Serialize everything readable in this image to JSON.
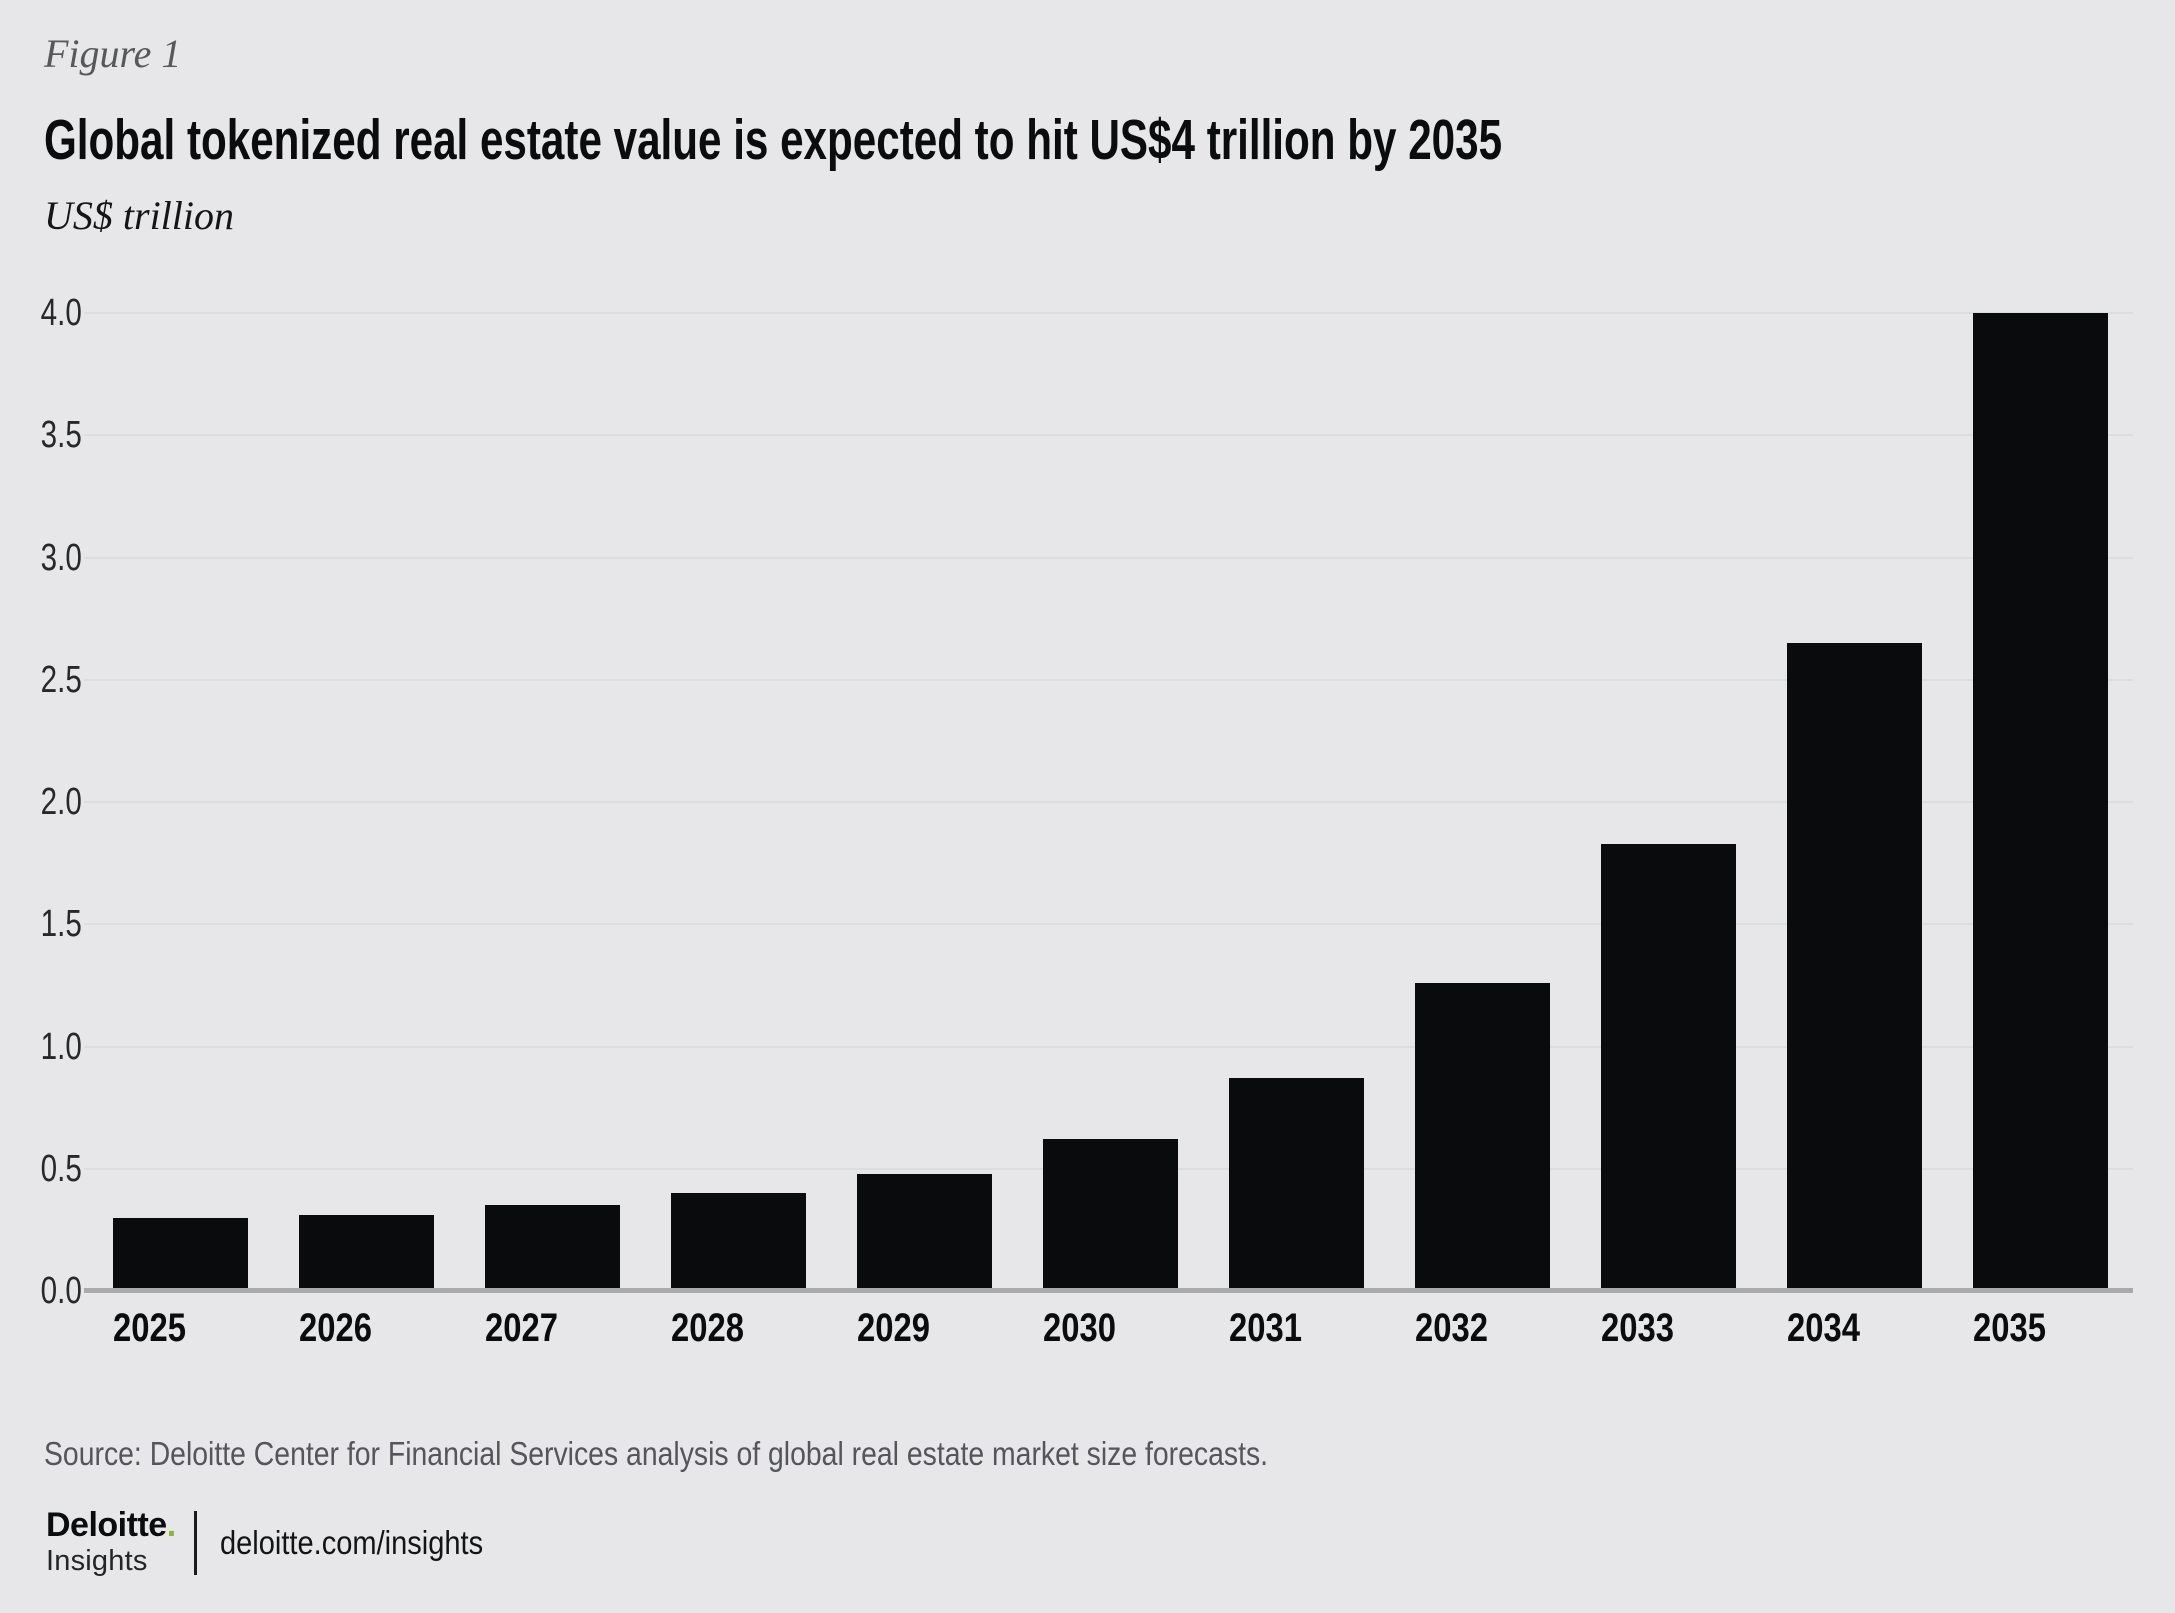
{
  "figure_label": "Figure 1",
  "title": "Global tokenized real estate value is expected to hit US$4 trillion by 2035",
  "unit_label": "US$ trillion",
  "source": "Source: Deloitte Center for Financial Services analysis of global real estate market size forecasts.",
  "footer": {
    "brand_name": "Deloitte",
    "brand_dot": ".",
    "brand_sub": "Insights",
    "link": "deloitte.com/insights"
  },
  "colors": {
    "background": "#e7e7e9",
    "bar": "#0a0b0c",
    "gridline": "#dcddde",
    "axis_line": "#a8a9ab",
    "gray_text": "#54565a",
    "deloitte_green": "#86bc25"
  },
  "chart_data": {
    "type": "bar",
    "categories": [
      "2025",
      "2026",
      "2027",
      "2028",
      "2029",
      "2030",
      "2031",
      "2032",
      "2033",
      "2034",
      "2035"
    ],
    "values": [
      0.3,
      0.31,
      0.35,
      0.4,
      0.48,
      0.62,
      0.87,
      1.26,
      1.83,
      2.65,
      4.0
    ],
    "title": "Global tokenized real estate value is expected to hit US$4 trillion by 2035",
    "xlabel": "",
    "ylabel": "US$ trillion",
    "ylim": [
      0,
      4.0
    ],
    "y_ticks": [
      0.0,
      0.5,
      1.0,
      1.5,
      2.0,
      2.5,
      3.0,
      3.5,
      4.0
    ],
    "grid": true,
    "legend_position": "none",
    "bar_color": "#0a0b0c"
  }
}
